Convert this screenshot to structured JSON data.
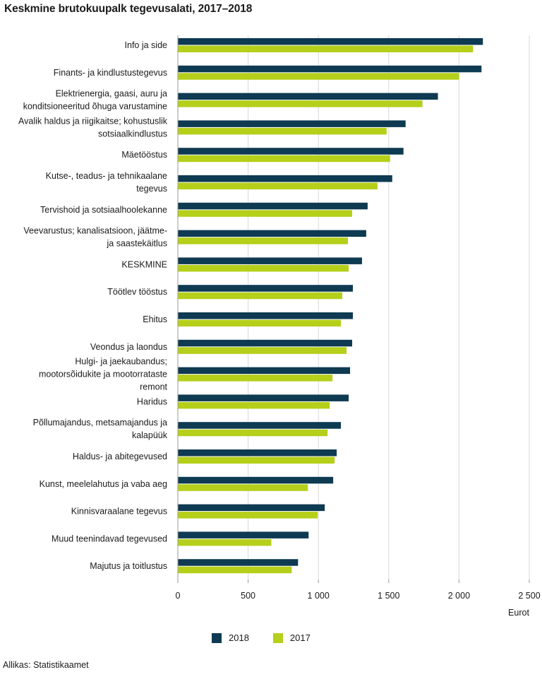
{
  "chart_data": {
    "type": "bar",
    "orientation": "horizontal",
    "title": "Keskmine brutokuupalk tegevusalati, 2017–2018",
    "xlabel": "Eurot",
    "xlim": [
      0,
      2500
    ],
    "xticks": [
      0,
      500,
      1000,
      1500,
      2000,
      2500
    ],
    "xtick_labels": [
      "0",
      "500",
      "1 000",
      "1 500",
      "2 000",
      "2 500"
    ],
    "grid": "vertical",
    "legend_position": "bottom",
    "categories": [
      [
        "Info ja side"
      ],
      [
        "Finants- ja kindlustustegevus"
      ],
      [
        "Elektrienergia, gaasi, auru ja",
        "konditsioneeritud õhuga varustamine"
      ],
      [
        "Avalik haldus ja riigikaitse; kohustuslik",
        "sotsiaalkindlustus"
      ],
      [
        "Mäetööstus"
      ],
      [
        "Kutse-, teadus- ja tehnikaalane",
        "tegevus"
      ],
      [
        "Tervishoid ja sotsiaalhoolekanne"
      ],
      [
        "Veevarustus; kanalisatsioon, jäätme-",
        "ja saastekäitlus"
      ],
      [
        "KESKMINE"
      ],
      [
        "Töötlev tööstus"
      ],
      [
        "Ehitus"
      ],
      [
        "Veondus ja laondus"
      ],
      [
        "Hulgi- ja jaekaubandus;",
        "mootorsõidukite ja mootorrataste",
        "remont"
      ],
      [
        "Haridus"
      ],
      [
        "Põllumajandus, metsamajandus ja",
        "kalapüük"
      ],
      [
        "Haldus- ja abitegevused"
      ],
      [
        "Kunst, meelelahutus ja vaba aeg"
      ],
      [
        "Kinnisvaraalane tegevus"
      ],
      [
        "Muud teenindavad tegevused"
      ],
      [
        "Majutus ja toitlustus"
      ]
    ],
    "series": [
      {
        "name": "2018",
        "color": "#0e3a52",
        "values": [
          2170,
          2160,
          1850,
          1620,
          1605,
          1525,
          1350,
          1340,
          1310,
          1245,
          1245,
          1240,
          1225,
          1215,
          1160,
          1130,
          1105,
          1045,
          930,
          855
        ]
      },
      {
        "name": "2017",
        "color": "#b5cf1a",
        "values": [
          2100,
          2000,
          1740,
          1485,
          1510,
          1420,
          1240,
          1210,
          1215,
          1170,
          1160,
          1200,
          1100,
          1080,
          1065,
          1115,
          925,
          995,
          665,
          810
        ]
      }
    ]
  },
  "source": "Allikas: Statistikaamet"
}
